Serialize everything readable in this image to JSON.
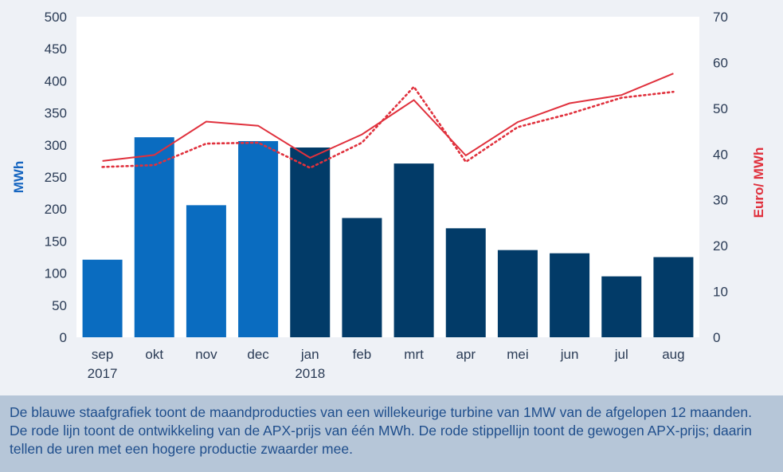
{
  "chart_data": {
    "type": "bar",
    "categories": [
      "sep\n2017",
      "okt",
      "nov",
      "dec",
      "jan\n2018",
      "feb",
      "mrt",
      "apr",
      "mei",
      "jun",
      "jul",
      "aug"
    ],
    "bar_colors": [
      "#0a6cc0",
      "#0a6cc0",
      "#0a6cc0",
      "#0a6cc0",
      "#023b68",
      "#023b68",
      "#023b68",
      "#023b68",
      "#023b68",
      "#023b68",
      "#023b68",
      "#023b68"
    ],
    "series": [
      {
        "type": "bar",
        "axis": "left",
        "values": [
          121,
          312,
          206,
          306,
          296,
          186,
          271,
          170,
          136,
          131,
          95,
          125
        ]
      },
      {
        "type": "line",
        "axis": "right",
        "style": "solid",
        "color": "#e0313d",
        "values": [
          38.5,
          39.8,
          47.1,
          46.2,
          39.2,
          44.3,
          51.8,
          39.7,
          47.0,
          51.1,
          52.9,
          57.6
        ]
      },
      {
        "type": "line",
        "axis": "right",
        "style": "dotted",
        "color": "#e0313d",
        "values": [
          37.2,
          37.6,
          42.3,
          42.5,
          37.0,
          42.5,
          54.7,
          38.3,
          45.9,
          48.8,
          52.3,
          53.6
        ]
      }
    ],
    "ylabel": "MWh",
    "y2label": "Euro/ MWh",
    "ylim": [
      0,
      500
    ],
    "y2lim": [
      0,
      70
    ],
    "yticks": [
      0,
      50,
      100,
      150,
      200,
      250,
      300,
      350,
      400,
      450,
      500
    ],
    "y2ticks": [
      0,
      10,
      20,
      30,
      40,
      50,
      60,
      70
    ],
    "grid": false,
    "colors": {
      "left_axis": "#1565c0",
      "right_axis": "#e0313d",
      "plot_bg": "#ffffff",
      "page_bg": "#eef1f6",
      "tick_text": "#2a3b55"
    }
  },
  "caption": "De blauwe staafgrafiek toont de maandproducties van een willekeurige turbine van 1MW van de afgelopen 12 maanden. De rode lijn toont de ontwikkeling van de APX-prijs van één MWh. De rode stippellijn toont de gewogen APX-prijs; daarin tellen de uren met een hogere productie zwaarder mee."
}
